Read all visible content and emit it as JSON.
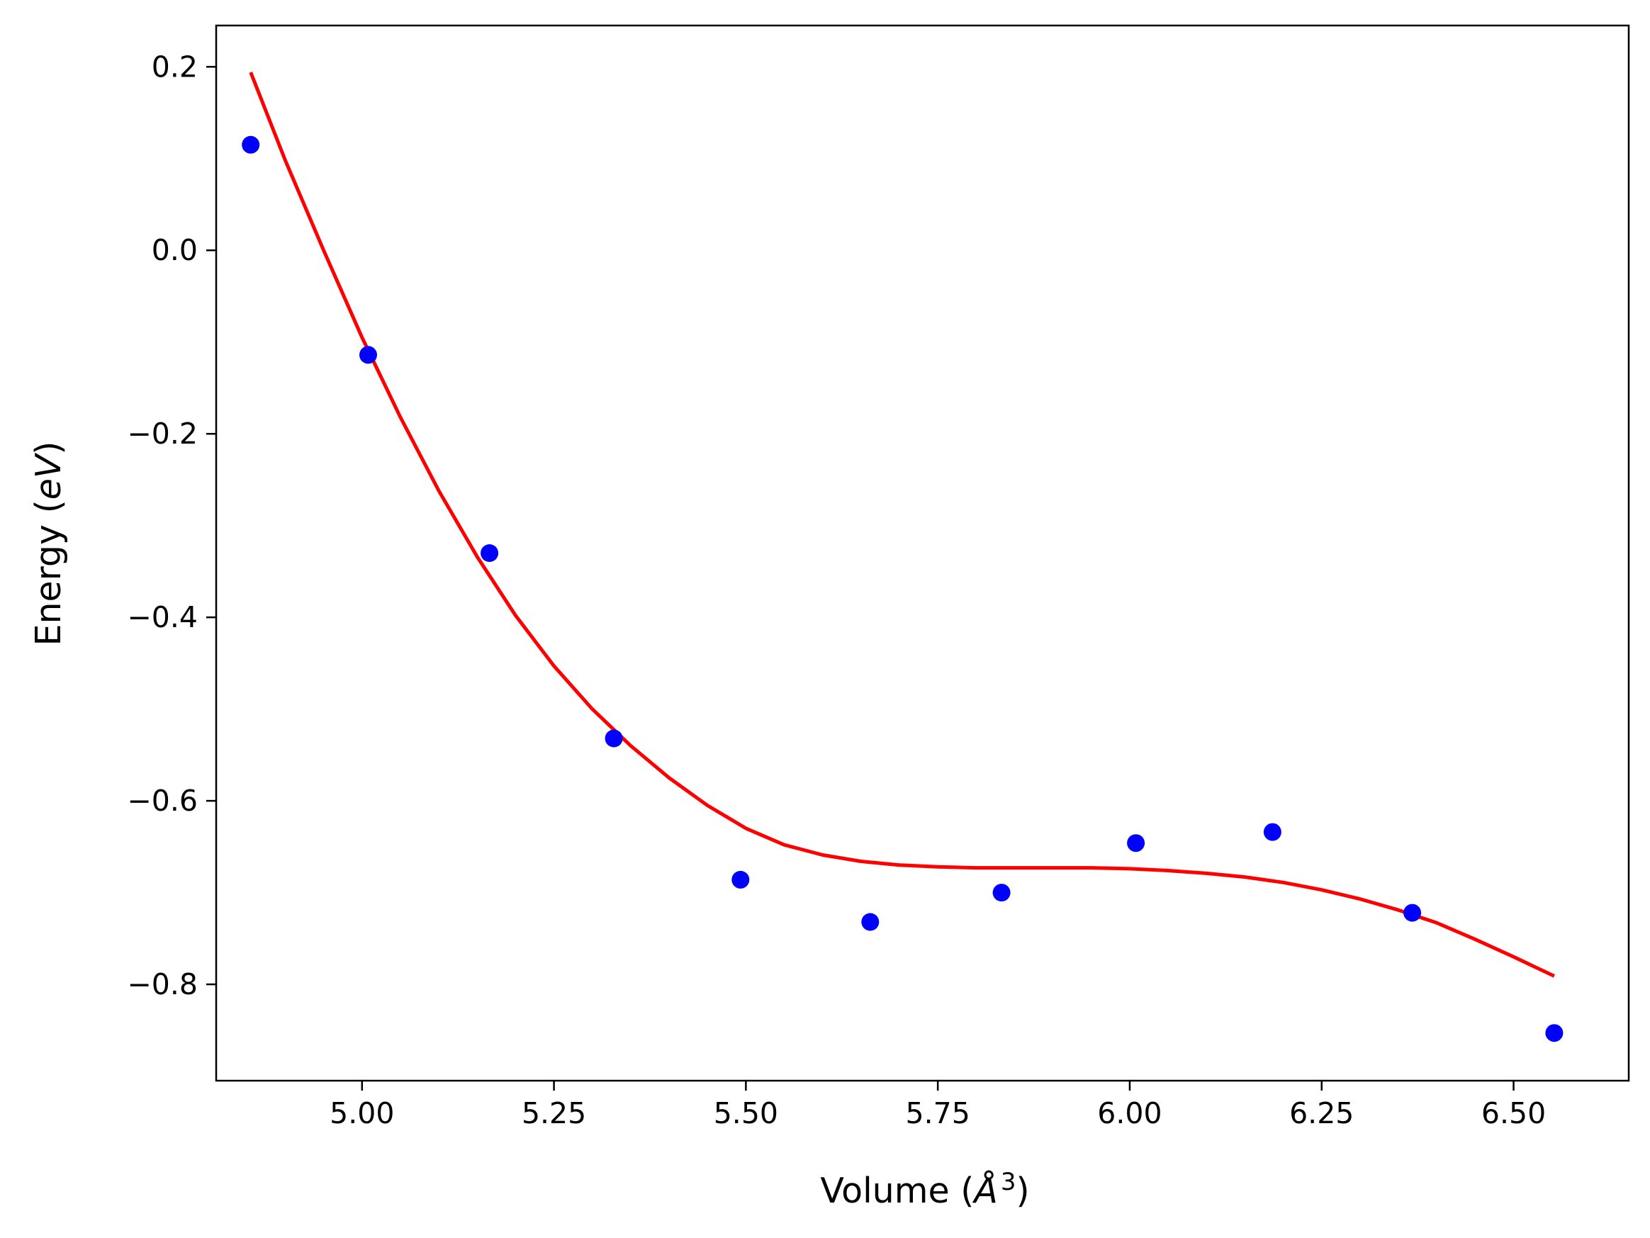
{
  "chart_data": {
    "type": "scatter",
    "xlabel": {
      "prefix": "Volume (",
      "symbol": "Å",
      "superscript": "3",
      "suffix": ")"
    },
    "ylabel": {
      "prefix": "Energy (",
      "unit": "eV",
      "suffix": ")"
    },
    "xlim": [
      4.81,
      6.65
    ],
    "ylim": [
      -0.905,
      0.245
    ],
    "x_ticks": [
      5.0,
      5.25,
      5.5,
      5.75,
      6.0,
      6.25,
      6.5
    ],
    "x_tick_labels": [
      "5.00",
      "5.25",
      "5.50",
      "5.75",
      "6.00",
      "6.25",
      "6.50"
    ],
    "y_ticks": [
      0.2,
      0.0,
      -0.2,
      -0.4,
      -0.6,
      -0.8
    ],
    "y_tick_labels": [
      "0.2",
      "0.0",
      "−0.2",
      "−0.4",
      "−0.6",
      "−0.8"
    ],
    "grid": false,
    "series": [
      {
        "kind": "points",
        "color": "#0000ff",
        "x": [
          4.855,
          5.008,
          5.166,
          5.328,
          5.493,
          5.662,
          5.833,
          6.008,
          6.186,
          6.368,
          6.553
        ],
        "y": [
          0.115,
          -0.114,
          -0.33,
          -0.532,
          -0.686,
          -0.732,
          -0.7,
          -0.646,
          -0.634,
          -0.722,
          -0.853
        ]
      },
      {
        "kind": "fit-line",
        "color": "#ff0000",
        "x": [
          4.855,
          4.9,
          4.95,
          5.0,
          5.05,
          5.1,
          5.15,
          5.2,
          5.25,
          5.3,
          5.35,
          5.4,
          5.45,
          5.5,
          5.55,
          5.6,
          5.65,
          5.7,
          5.75,
          5.8,
          5.85,
          5.9,
          5.95,
          6.0,
          6.05,
          6.1,
          6.15,
          6.2,
          6.25,
          6.3,
          6.35,
          6.4,
          6.45,
          6.5,
          6.553
        ],
        "y": [
          0.194,
          0.098,
          0.0,
          -0.095,
          -0.182,
          -0.262,
          -0.334,
          -0.398,
          -0.453,
          -0.5,
          -0.54,
          -0.575,
          -0.605,
          -0.63,
          -0.648,
          -0.659,
          -0.666,
          -0.67,
          -0.672,
          -0.673,
          -0.673,
          -0.673,
          -0.673,
          -0.674,
          -0.676,
          -0.679,
          -0.683,
          -0.689,
          -0.697,
          -0.707,
          -0.719,
          -0.733,
          -0.751,
          -0.77,
          -0.791
        ]
      }
    ]
  }
}
